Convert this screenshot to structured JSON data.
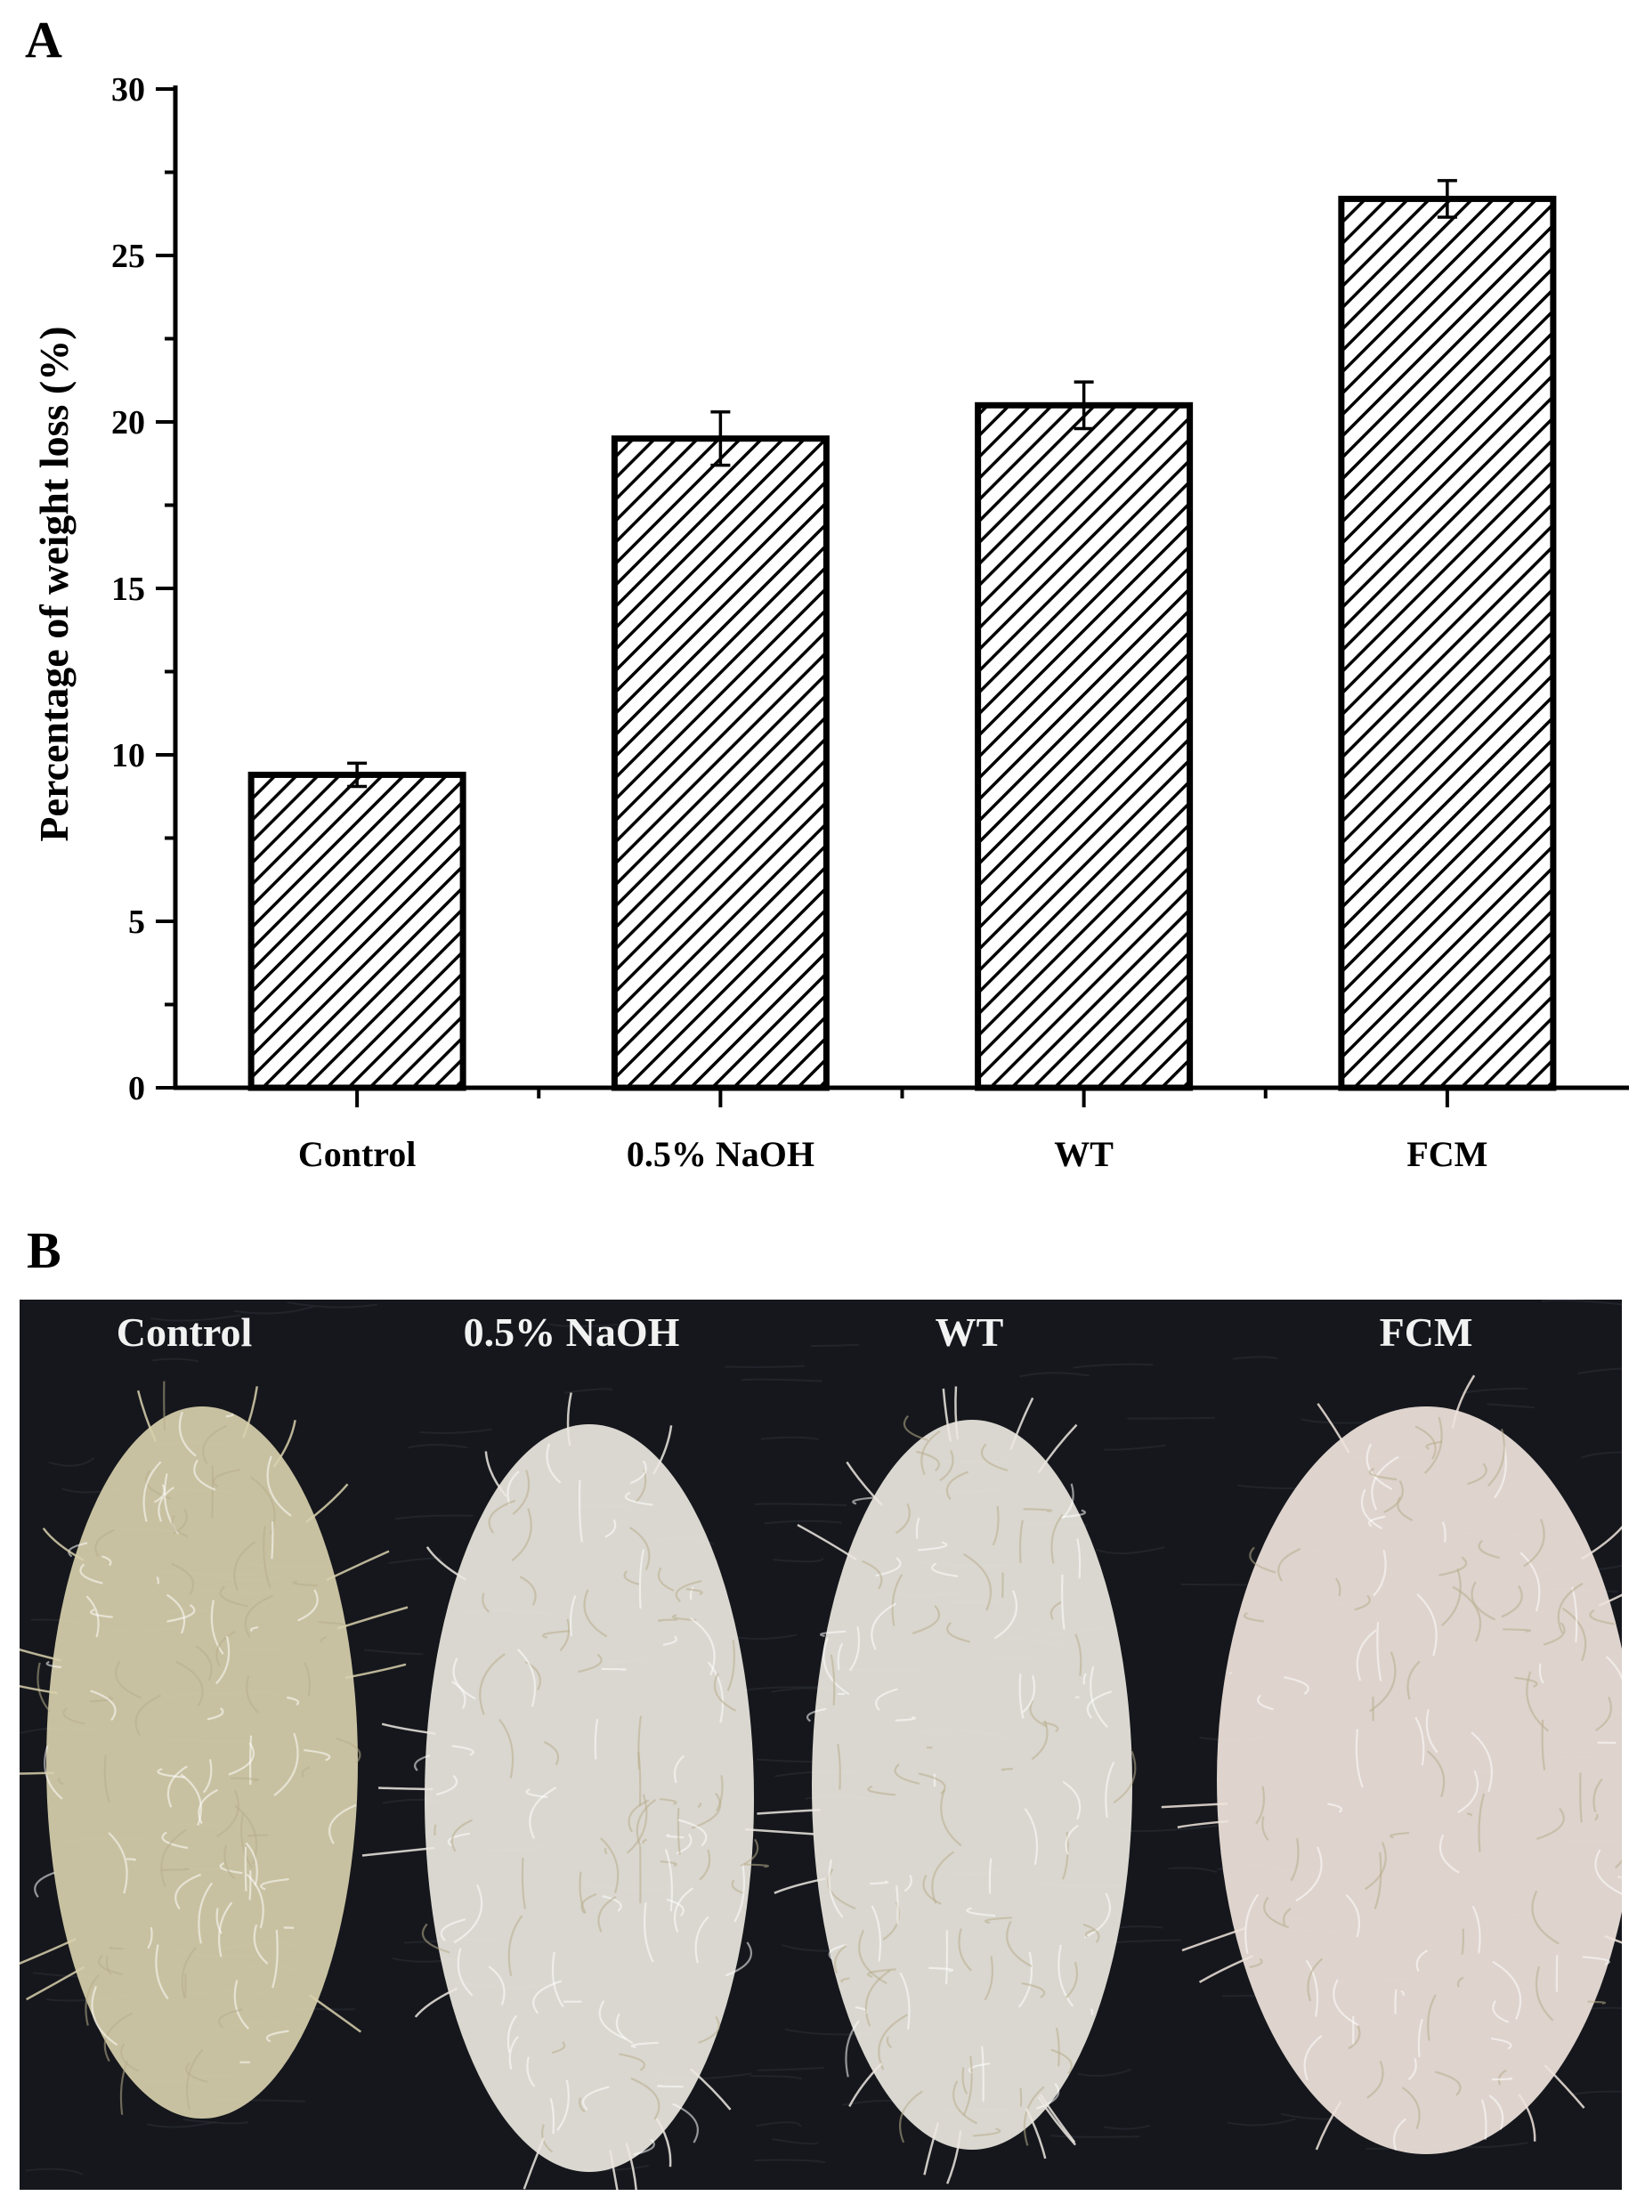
{
  "panels": {
    "a_label": "A",
    "b_label": "B"
  },
  "chart_data": {
    "type": "bar",
    "title": "",
    "xlabel": "",
    "ylabel": "Percentage of weight loss (%)",
    "categories": [
      "Control",
      "0.5% NaOH",
      "WT",
      "FCM"
    ],
    "values": [
      9.4,
      19.5,
      20.5,
      26.7
    ],
    "errors": [
      0.35,
      0.8,
      0.7,
      0.55
    ],
    "ylim": [
      0,
      30
    ],
    "yticks": [
      "0",
      "5",
      "10",
      "15",
      "20",
      "25",
      "30"
    ],
    "bar_fill": "diagonal hatch",
    "grid": false,
    "legend": "none"
  },
  "photo": {
    "labels": [
      "Control",
      "0.5% NaOH",
      "WT",
      "FCM"
    ],
    "colors": {
      "background": "#15171c",
      "fiber_control": "#d8d0ad",
      "fiber_treated": "#ece8e0",
      "fiber_fcm": "#f0e4dc"
    }
  }
}
